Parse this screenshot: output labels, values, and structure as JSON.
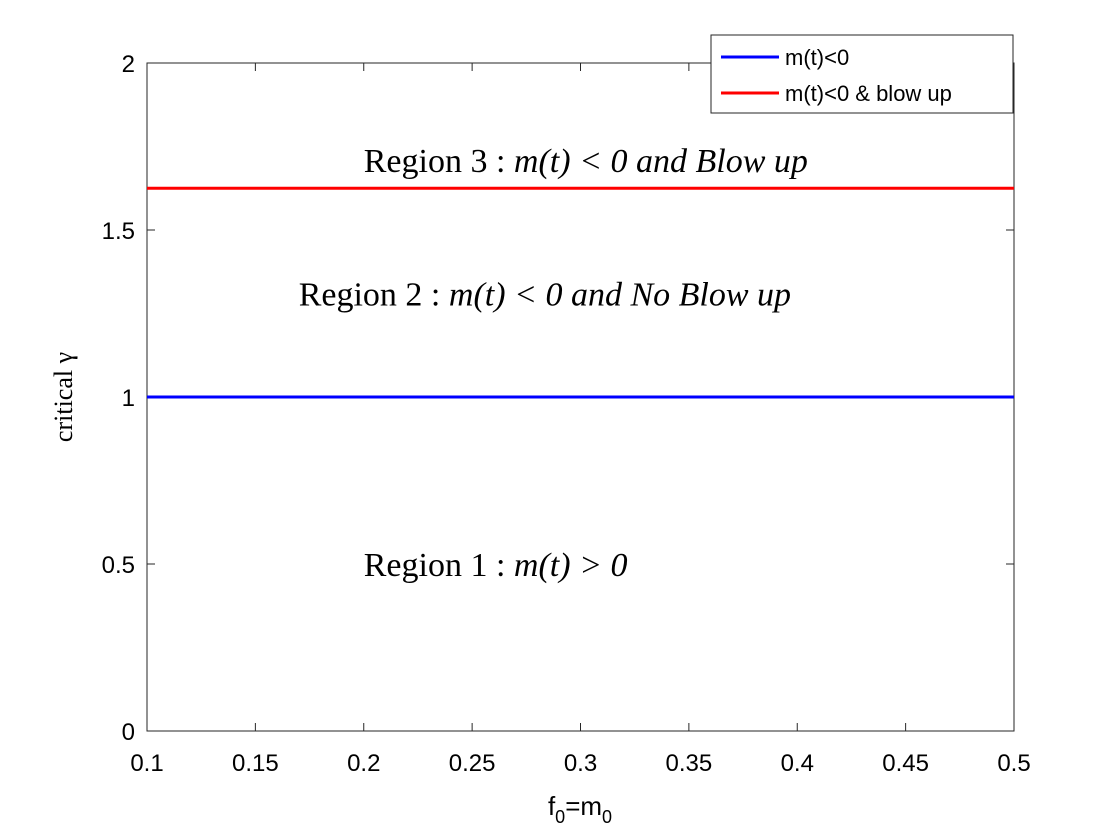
{
  "chart_data": {
    "type": "line",
    "xlabel": "f0=m0",
    "xlabel_parts": {
      "f": "f",
      "f_sub": "0",
      "eq": "=",
      "m": "m",
      "m_sub": "0"
    },
    "ylabel": "critical γ",
    "xlim": [
      0.1,
      0.5
    ],
    "ylim": [
      0,
      2
    ],
    "xticks": [
      0.1,
      0.15,
      0.2,
      0.25,
      0.3,
      0.35,
      0.4,
      0.45,
      0.5
    ],
    "yticks": [
      0,
      0.5,
      1,
      1.5,
      2
    ],
    "xtick_labels": [
      "0.1",
      "0.15",
      "0.2",
      "0.25",
      "0.3",
      "0.35",
      "0.4",
      "0.45",
      "0.5"
    ],
    "ytick_labels": [
      "0",
      "0.5",
      "1",
      "1.5",
      "2"
    ],
    "series": [
      {
        "name": "m(t)<0",
        "color": "#0000ff",
        "x": [
          0.1,
          0.5
        ],
        "y": [
          1.0,
          1.0
        ]
      },
      {
        "name": "m(t)<0 & blow up",
        "color": "#ff0000",
        "x": [
          0.1,
          0.5
        ],
        "y": [
          1.625,
          1.625
        ]
      }
    ],
    "legend_position": "top-right",
    "annotations": [
      {
        "text": "Region 3 : m(t) < 0 and Blow up",
        "x": 0.2,
        "y": 1.71
      },
      {
        "text": "Region 2 : m(t) < 0 and No Blow up",
        "x": 0.17,
        "y": 1.31
      },
      {
        "text": "Region 1 : m(t) > 0",
        "x": 0.2,
        "y": 0.5
      }
    ],
    "grid": false
  }
}
